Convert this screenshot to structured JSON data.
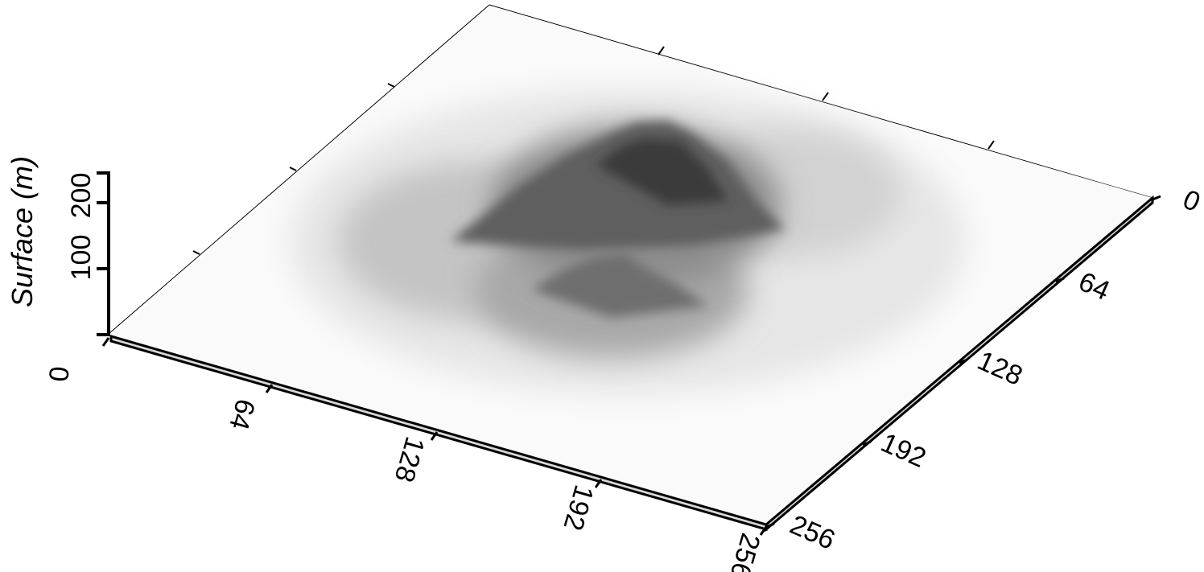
{
  "chart_data": {
    "type": "surface",
    "title": "",
    "zlabel": "Surface (m)",
    "x_ticks": [
      0,
      64,
      128,
      192,
      256
    ],
    "y_ticks": [
      0,
      64,
      128,
      192,
      256
    ],
    "z_ticks": [
      100,
      200
    ],
    "x_range": [
      0,
      256
    ],
    "y_range": [
      0,
      256
    ],
    "z_range": [
      0,
      240
    ],
    "colormap": "grayscale",
    "color_low": "#ffffff",
    "color_high": "#2a2a2a",
    "peaks": [
      {
        "x": 150,
        "y": 110,
        "z": 240
      },
      {
        "x": 135,
        "y": 130,
        "z": 200
      },
      {
        "x": 175,
        "y": 140,
        "z": 150
      },
      {
        "x": 150,
        "y": 175,
        "z": 110
      }
    ]
  }
}
